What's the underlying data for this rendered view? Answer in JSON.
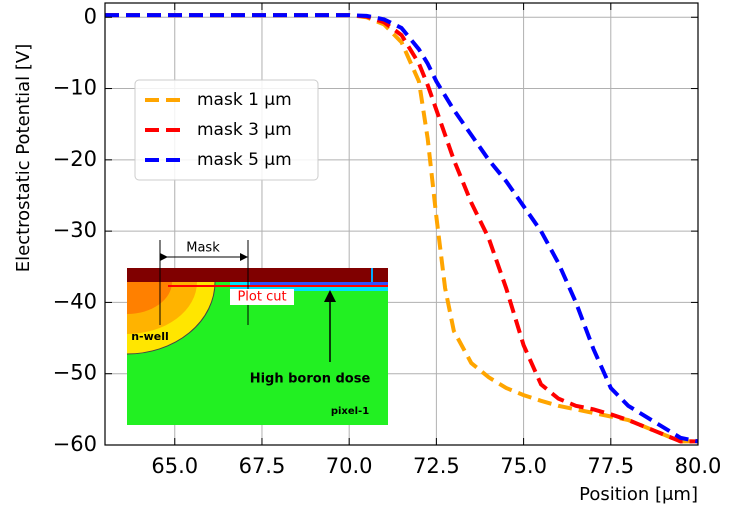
{
  "chart_data": {
    "type": "line",
    "x_label": "Position [μm]",
    "y_label": "Electrostatic Potential [V]",
    "xlim": [
      63,
      80
    ],
    "ylim": [
      -60,
      2
    ],
    "xticks": [
      {
        "value": 65,
        "label": "65.0"
      },
      67.5,
      {
        "value": 70,
        "label": "70.0"
      },
      72.5,
      {
        "value": 75,
        "label": "75.0"
      },
      77.5,
      {
        "value": 80,
        "label": "80.0"
      }
    ],
    "yticks": [
      0,
      {
        "value": -10,
        "label": "−10"
      },
      {
        "value": -20,
        "label": "−20"
      },
      {
        "value": -30,
        "label": "−30"
      },
      {
        "value": -40,
        "label": "−40"
      },
      {
        "value": -50,
        "label": "−50"
      },
      {
        "value": -60,
        "label": "−60"
      }
    ],
    "grid": true,
    "legend": "upper left",
    "x": [
      63,
      64,
      65,
      66,
      67,
      68,
      69,
      70,
      70.5,
      71,
      71.5,
      72,
      72.25,
      72.5,
      72.75,
      73,
      73.5,
      74,
      74.5,
      75,
      75.5,
      76,
      76.5,
      77,
      77.5,
      78,
      79,
      79.5,
      80
    ],
    "series": [
      {
        "name": "mask 1 μm",
        "color": "#ffa500",
        "values": [
          0.3,
          0.3,
          0.3,
          0.3,
          0.3,
          0.3,
          0.3,
          0.3,
          0,
          -1,
          -3.5,
          -9,
          -17,
          -28,
          -38,
          -44,
          -48.5,
          -50.5,
          -52,
          -53,
          -53.8,
          -54.5,
          -55,
          -55.5,
          -56,
          -56.5,
          -58.5,
          -59.5,
          -59.5
        ]
      },
      {
        "name": "mask 3 μm",
        "color": "#ff0000",
        "values": [
          0.3,
          0.3,
          0.3,
          0.3,
          0.3,
          0.3,
          0.3,
          0.3,
          0.1,
          -0.7,
          -2.5,
          -6.5,
          -9.5,
          -13,
          -16.5,
          -20,
          -26,
          -31,
          -38,
          -46,
          -51.5,
          -53.5,
          -54.5,
          -55,
          -55.7,
          -56.5,
          -58.5,
          -59.5,
          -59.5
        ]
      },
      {
        "name": "mask 5 μm",
        "color": "#0000ff",
        "values": [
          0.3,
          0.3,
          0.3,
          0.3,
          0.3,
          0.3,
          0.3,
          0.3,
          0.2,
          -0.3,
          -1.5,
          -4.5,
          -6.5,
          -9,
          -11,
          -13,
          -16.5,
          -20,
          -23,
          -26.5,
          -30,
          -34.5,
          -40,
          -46.5,
          -52,
          -54.5,
          -57.5,
          -59,
          -59.5
        ]
      }
    ],
    "annotations": [
      "Mask",
      "Plot cut",
      "n-well",
      "High boron dose",
      "pixel-1"
    ]
  }
}
